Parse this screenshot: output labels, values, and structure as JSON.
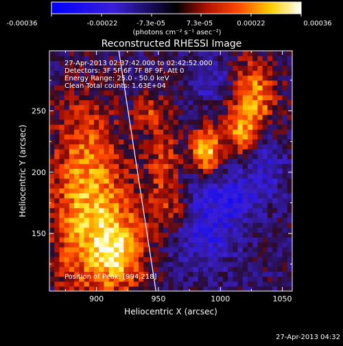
{
  "colorbar": {
    "tick_labels": [
      "-0.00036",
      "-0.00022",
      "-7.3e-05",
      "7.3e-05",
      "0.00022",
      "0.00036"
    ],
    "unit_label": "(photons cm⁻² s⁻¹ asec⁻²)"
  },
  "plot": {
    "title": "Reconstructed RHESSI Image",
    "info_lines": [
      "27-Apr-2013 02:37:42.000 to 02:42:52.000",
      "Detectors: 3F 5F 6F 7F 8F 9F, Att 0",
      "Energy Range: 25.0 - 50.0 keV",
      "Clean     Total counts: 1.63E+04"
    ],
    "peak_label": "Position of Peak: [994,218]",
    "footer_timestamp": "27-Apr-2013 04:32"
  },
  "colors": {
    "background": "#000000",
    "cmap_low": "#0000ff",
    "cmap_mid": "#000000",
    "cmap_high": "#ffffff",
    "limb_line": "#ffffff"
  },
  "chart_data": {
    "type": "heatmap",
    "title": "Reconstructed RHESSI Image",
    "xlabel": "Heliocentric X (arcsec)",
    "ylabel": "Heliocentric Y (arcsec)",
    "xlim": [
      862,
      1058
    ],
    "ylim": [
      103,
      299
    ],
    "xticks": [
      900,
      950,
      1000,
      1050
    ],
    "yticks": [
      150,
      200,
      250
    ],
    "color_range": [
      -0.00036,
      0.00036
    ],
    "colormap": "blue-black-red-yellow-white",
    "grid_step_arcsec": 4,
    "peak_position": [
      994,
      218
    ],
    "limb_line": [
      [
        918,
        299
      ],
      [
        948,
        103
      ]
    ],
    "sources": [
      {
        "x": 989,
        "y": 218,
        "sx": 8,
        "sy": 13,
        "amplitude": 1.0
      },
      {
        "x": 1026,
        "y": 262,
        "sx": 14,
        "sy": 22,
        "amplitude": 0.75
      },
      {
        "x": 1017,
        "y": 230,
        "sx": 9,
        "sy": 12,
        "amplitude": 0.55
      },
      {
        "x": 900,
        "y": 150,
        "sx": 26,
        "sy": 42,
        "amplitude": 0.72
      },
      {
        "x": 918,
        "y": 135,
        "sx": 14,
        "sy": 18,
        "amplitude": 0.5
      },
      {
        "x": 890,
        "y": 215,
        "sx": 18,
        "sy": 40,
        "amplitude": 0.45
      },
      {
        "x": 955,
        "y": 205,
        "sx": 10,
        "sy": 28,
        "amplitude": 0.45
      },
      {
        "x": 942,
        "y": 250,
        "sx": 9,
        "sy": 10,
        "amplitude": 0.4
      },
      {
        "x": 965,
        "y": 168,
        "sx": 12,
        "sy": 12,
        "amplitude": 0.35
      }
    ],
    "negative_regions": [
      {
        "x": 988,
        "y": 160,
        "sx": 20,
        "sy": 25,
        "amplitude": 0.5
      },
      {
        "x": 1035,
        "y": 205,
        "sx": 12,
        "sy": 20,
        "amplitude": 0.35
      },
      {
        "x": 995,
        "y": 275,
        "sx": 14,
        "sy": 12,
        "amplitude": 0.35
      },
      {
        "x": 1012,
        "y": 180,
        "sx": 12,
        "sy": 12,
        "amplitude": 0.3
      }
    ]
  }
}
